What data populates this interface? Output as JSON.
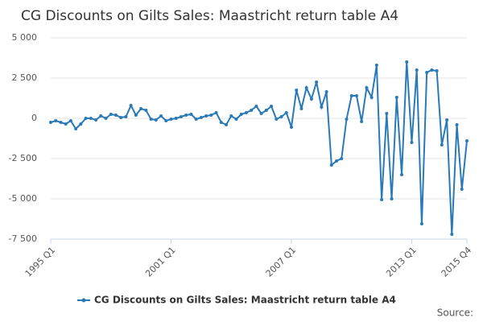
{
  "chart_data": {
    "type": "line",
    "title": "CG Discounts on Gilts Sales: Maastricht return table A4",
    "categories": [
      "1995 Q1",
      null,
      null,
      null,
      null,
      null,
      null,
      null,
      null,
      null,
      null,
      null,
      null,
      null,
      null,
      null,
      null,
      null,
      null,
      null,
      null,
      null,
      null,
      null,
      "2001 Q1",
      null,
      null,
      null,
      null,
      null,
      null,
      null,
      null,
      null,
      null,
      null,
      null,
      null,
      null,
      null,
      null,
      null,
      null,
      null,
      null,
      null,
      null,
      null,
      "2007 Q1",
      null,
      null,
      null,
      null,
      null,
      null,
      null,
      null,
      null,
      null,
      null,
      null,
      null,
      null,
      null,
      null,
      null,
      null,
      null,
      null,
      null,
      null,
      null,
      "2013 Q1",
      null,
      null,
      null,
      null,
      null,
      null,
      null,
      null,
      null,
      null,
      "2015 Q4"
    ],
    "series": [
      {
        "name": "CG Discounts on Gilts Sales: Maastricht return table A4",
        "color": "#2a7ab8",
        "values": [
          -250,
          -150,
          -250,
          -350,
          -150,
          -650,
          -350,
          0,
          0,
          -100,
          150,
          0,
          250,
          200,
          50,
          100,
          800,
          200,
          600,
          500,
          -50,
          -100,
          150,
          -150,
          -50,
          0,
          100,
          200,
          250,
          -50,
          50,
          150,
          200,
          350,
          -250,
          -400,
          150,
          -50,
          250,
          350,
          500,
          750,
          300,
          500,
          750,
          -50,
          100,
          350,
          -550,
          1750,
          600,
          1900,
          1200,
          2250,
          700,
          1650,
          -2900,
          -2650,
          -2500,
          -50,
          1400,
          1400,
          -200,
          1900,
          1300,
          3300,
          -5050,
          300,
          -5000,
          1300,
          -3500,
          3500,
          -1500,
          3000,
          -6550,
          2850,
          3000,
          2950,
          -1650,
          -100,
          -7200,
          -400,
          -4400,
          -1400
        ]
      }
    ],
    "ylim": [
      -7500,
      5000
    ],
    "yticks": [
      {
        "value": 5000,
        "label": "5 000"
      },
      {
        "value": 2500,
        "label": "2 500"
      },
      0,
      {
        "value": -2500,
        "label": "-2 500"
      },
      {
        "value": -5000,
        "label": "-5 000"
      },
      {
        "value": -7500,
        "label": "-7 500"
      }
    ],
    "grid": true,
    "source": "Source:"
  }
}
